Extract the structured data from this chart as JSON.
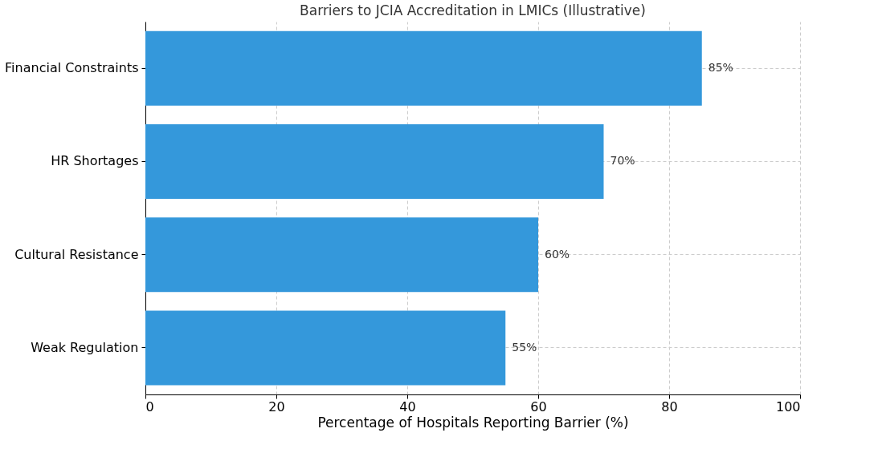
{
  "chart_data": {
    "type": "bar",
    "orientation": "horizontal",
    "title": "Barriers to JCIA Accreditation in LMICs (Illustrative)",
    "xlabel": "Percentage of Hospitals Reporting Barrier (%)",
    "categories": [
      "Financial Constraints",
      "HR Shortages",
      "Cultural Resistance",
      "Weak Regulation"
    ],
    "values": [
      85,
      70,
      60,
      55
    ],
    "color": "#3498db",
    "value_labels": [
      "85%",
      "70%",
      "60%",
      "55%"
    ],
    "xlim": [
      0,
      100
    ],
    "xticks": [
      0,
      20,
      40,
      60,
      80,
      100
    ],
    "grid": true
  }
}
